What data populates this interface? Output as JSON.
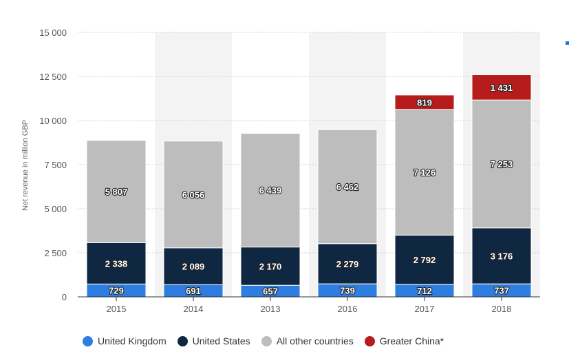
{
  "chart_data": {
    "type": "bar",
    "stacked": true,
    "categories": [
      "2015",
      "2014",
      "2013",
      "2016",
      "2017",
      "2018"
    ],
    "series": [
      {
        "name": "United Kingdom",
        "color": "#2e7de0",
        "values": [
          729,
          691,
          657,
          739,
          712,
          737
        ],
        "labels": [
          "729",
          "691",
          "657",
          "739",
          "712",
          "737"
        ]
      },
      {
        "name": "United States",
        "color": "#0f2741",
        "values": [
          2338,
          2089,
          2170,
          2279,
          2792,
          3176
        ],
        "labels": [
          "2 338",
          "2 089",
          "2 170",
          "2 279",
          "2 792",
          "3 176"
        ]
      },
      {
        "name": "All other countries",
        "color": "#bdbdbd",
        "values": [
          5807,
          6056,
          6439,
          6462,
          7126,
          7253
        ],
        "labels": [
          "5 807",
          "6 056",
          "6 439",
          "6 462",
          "7 126",
          "7 253"
        ]
      },
      {
        "name": "Greater China*",
        "color": "#b71c1c",
        "values": [
          null,
          null,
          null,
          null,
          819,
          1431
        ],
        "labels": [
          "",
          "",
          "",
          "",
          "819",
          "1 431"
        ]
      }
    ],
    "ylabel": "Net revenue in million GBP",
    "ylim": [
      0,
      15000
    ],
    "yticks": [
      0,
      2500,
      5000,
      7500,
      10000,
      12500,
      15000
    ],
    "ytick_labels": [
      "0",
      "2 500",
      "5 000",
      "7 500",
      "10 000",
      "12 500",
      "15 000"
    ],
    "grid": true,
    "legend_position": "bottom"
  },
  "legend": {
    "items": [
      {
        "label": "United Kingdom",
        "color": "#2e7de0"
      },
      {
        "label": "United States",
        "color": "#0f2741"
      },
      {
        "label": "All other countries",
        "color": "#bdbdbd"
      },
      {
        "label": "Greater China*",
        "color": "#b71c1c"
      }
    ]
  }
}
